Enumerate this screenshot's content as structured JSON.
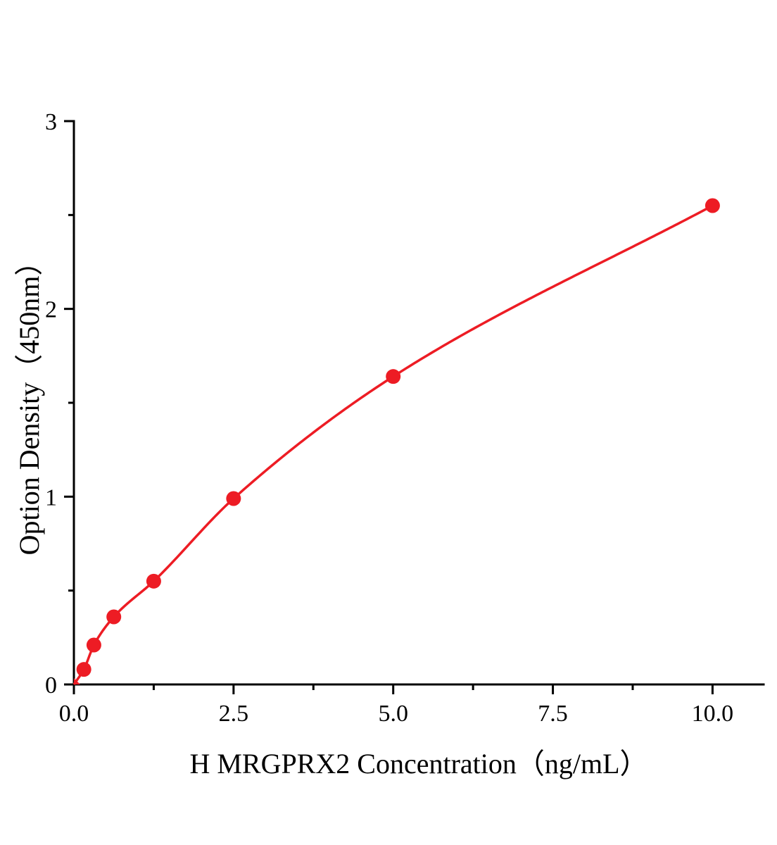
{
  "chart": {
    "background_color": "#ffffff",
    "axis_color": "#000000",
    "accent_color": "#ed1c24"
  },
  "chart_data": {
    "type": "scatter",
    "title": "",
    "xlabel": "H MRGPRX2 Concentration（ng/mL）",
    "ylabel": "Option Density（450nm）",
    "x": [
      0.156,
      0.313,
      0.625,
      1.25,
      2.5,
      5,
      10
    ],
    "y": [
      0.08,
      0.21,
      0.36,
      0.55,
      0.99,
      1.64,
      2.55
    ],
    "curve_start": {
      "x": 0,
      "y": 0
    },
    "xlim": [
      0,
      10.8
    ],
    "ylim": [
      0,
      3
    ],
    "x_ticks": [
      0,
      2.5,
      5,
      7.5,
      10
    ],
    "x_tick_labels": [
      "0.0",
      "2.5",
      "5.0",
      "7.5",
      "10.0"
    ],
    "x_minor_ticks": [
      1.25,
      3.75,
      6.25,
      8.75
    ],
    "y_ticks": [
      0,
      1,
      2,
      3
    ],
    "y_tick_labels": [
      "0",
      "1",
      "2",
      "3"
    ],
    "y_minor_ticks": [
      0.5,
      1.5,
      2.5
    ],
    "grid": false,
    "legend": "none",
    "line_color": "#ed1c24",
    "marker": "circle",
    "marker_color": "#ed1c24"
  }
}
